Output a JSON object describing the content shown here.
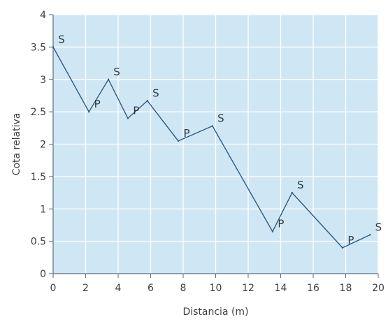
{
  "chart_data": {
    "type": "line",
    "title": "",
    "xlabel": "Distancia (m)",
    "ylabel": "Cota relativa",
    "xlim": [
      0,
      20
    ],
    "ylim": [
      0,
      4
    ],
    "xticks": [
      0,
      2,
      4,
      6,
      8,
      10,
      12,
      14,
      16,
      18,
      20
    ],
    "yticks": [
      0,
      0.5,
      1,
      1.5,
      2,
      2.5,
      3,
      3.5,
      4
    ],
    "xtick_labels": [
      "0",
      "2",
      "4",
      "6",
      "8",
      "10",
      "12",
      "14",
      "16",
      "18",
      "20"
    ],
    "ytick_labels": [
      "0",
      "0.5",
      "1",
      "1.5",
      "2",
      "2.5",
      "3",
      "3.5",
      "4"
    ],
    "grid": true,
    "series": [
      {
        "values": [
          {
            "x": 0,
            "y": 3.5,
            "label": "S"
          },
          {
            "x": 2.2,
            "y": 2.5,
            "label": "P"
          },
          {
            "x": 3.4,
            "y": 3.0,
            "label": "S"
          },
          {
            "x": 4.6,
            "y": 2.4,
            "label": "P"
          },
          {
            "x": 5.8,
            "y": 2.67,
            "label": "S"
          },
          {
            "x": 7.7,
            "y": 2.05,
            "label": "P"
          },
          {
            "x": 9.8,
            "y": 2.28,
            "label": "S"
          },
          {
            "x": 13.5,
            "y": 0.65,
            "label": "P"
          },
          {
            "x": 14.7,
            "y": 1.25,
            "label": "S"
          },
          {
            "x": 17.8,
            "y": 0.4,
            "label": "P"
          },
          {
            "x": 19.5,
            "y": 0.6,
            "label": "S"
          }
        ]
      }
    ]
  },
  "colors": {
    "plot_background": "#cfe7f5",
    "grid": "#ffffff",
    "axis": "#5a6b78",
    "line": "#2f5b7d",
    "text": "#3f3f3f"
  }
}
